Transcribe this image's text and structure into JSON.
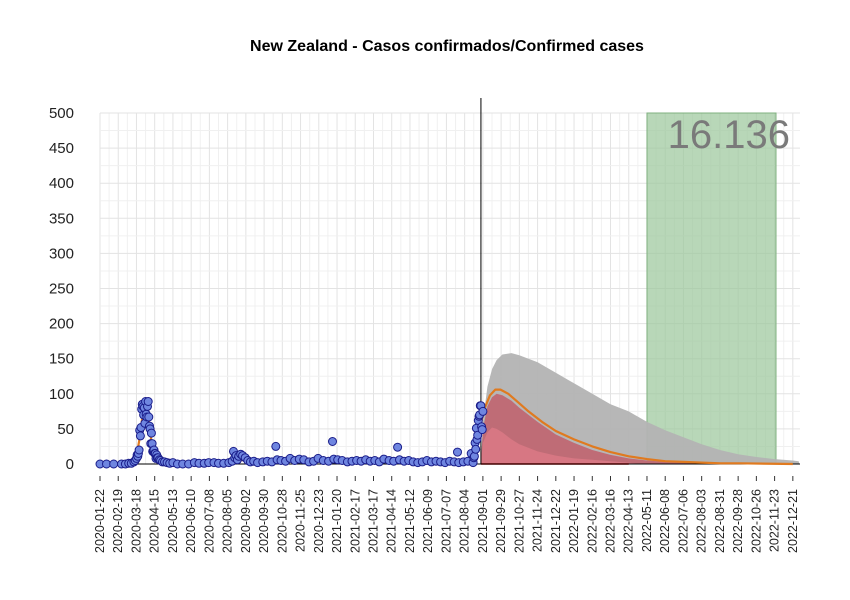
{
  "chart_data": {
    "type": "scatter",
    "title": "New Zealand - Casos confirmados/Confirmed cases",
    "xlabel": "",
    "ylabel": "",
    "ylim": [
      0,
      500
    ],
    "yticks": [
      0,
      50,
      100,
      150,
      200,
      250,
      300,
      350,
      400,
      450,
      500
    ],
    "xlim": [
      "2020-01-22",
      "2023-01-01"
    ],
    "xticks": [
      "2020-01-22",
      "2020-02-19",
      "2020-03-18",
      "2020-04-15",
      "2020-05-13",
      "2020-06-10",
      "2020-07-08",
      "2020-08-05",
      "2020-09-02",
      "2020-09-30",
      "2020-10-28",
      "2020-11-25",
      "2020-12-23",
      "2021-01-20",
      "2021-02-17",
      "2021-03-17",
      "2021-04-14",
      "2021-05-12",
      "2021-06-09",
      "2021-07-07",
      "2021-08-04",
      "2021-09-01",
      "2021-09-29",
      "2021-10-27",
      "2021-11-24",
      "2021-12-22",
      "2022-01-19",
      "2022-02-16",
      "2022-03-16",
      "2022-04-13",
      "2022-05-11",
      "2022-06-08",
      "2022-07-06",
      "2022-08-03",
      "2022-08-31",
      "2022-09-28",
      "2022-10-26",
      "2022-11-23",
      "2022-12-21"
    ],
    "grid": true,
    "vertical_line_date": "2021-08-29",
    "total_label": "16.136",
    "shaded_region": {
      "start": "2022-05-11",
      "end": "2023-01-01",
      "color": "#9dc89d"
    },
    "colors": {
      "points_fill": "#6f86e0",
      "points_stroke": "#1a1d8a",
      "fit_line": "#e07a1f",
      "projection_upper": "#b3b3b3",
      "projection_mid": "#c0646f",
      "projection_lower": "#d87884",
      "zero_line": "#cc0000"
    },
    "observed_points": [
      [
        "2020-01-22",
        0
      ],
      [
        "2020-02-01",
        0
      ],
      [
        "2020-02-12",
        0
      ],
      [
        "2020-02-24",
        0
      ],
      [
        "2020-03-01",
        0
      ],
      [
        "2020-03-06",
        1
      ],
      [
        "2020-03-10",
        1
      ],
      [
        "2020-03-14",
        3
      ],
      [
        "2020-03-16",
        5
      ],
      [
        "2020-03-18",
        8
      ],
      [
        "2020-03-19",
        13
      ],
      [
        "2020-03-20",
        11
      ],
      [
        "2020-03-21",
        15
      ],
      [
        "2020-03-22",
        20
      ],
      [
        "2020-03-23",
        48
      ],
      [
        "2020-03-24",
        40
      ],
      [
        "2020-03-25",
        52
      ],
      [
        "2020-03-26",
        78
      ],
      [
        "2020-03-27",
        85
      ],
      [
        "2020-03-28",
        82
      ],
      [
        "2020-03-29",
        70
      ],
      [
        "2020-03-30",
        80
      ],
      [
        "2020-03-31",
        58
      ],
      [
        "2020-04-01",
        89
      ],
      [
        "2020-04-02",
        71
      ],
      [
        "2020-04-03",
        67
      ],
      [
        "2020-04-04",
        82
      ],
      [
        "2020-04-05",
        89
      ],
      [
        "2020-04-06",
        67
      ],
      [
        "2020-04-07",
        54
      ],
      [
        "2020-04-08",
        50
      ],
      [
        "2020-04-09",
        29
      ],
      [
        "2020-04-10",
        44
      ],
      [
        "2020-04-11",
        29
      ],
      [
        "2020-04-12",
        18
      ],
      [
        "2020-04-13",
        19
      ],
      [
        "2020-04-14",
        20
      ],
      [
        "2020-04-15",
        15
      ],
      [
        "2020-04-16",
        15
      ],
      [
        "2020-04-17",
        8
      ],
      [
        "2020-04-18",
        13
      ],
      [
        "2020-04-19",
        9
      ],
      [
        "2020-04-20",
        9
      ],
      [
        "2020-04-22",
        6
      ],
      [
        "2020-04-24",
        5
      ],
      [
        "2020-04-27",
        3
      ],
      [
        "2020-04-30",
        3
      ],
      [
        "2020-05-04",
        2
      ],
      [
        "2020-05-08",
        1
      ],
      [
        "2020-05-13",
        2
      ],
      [
        "2020-05-20",
        0
      ],
      [
        "2020-05-28",
        0
      ],
      [
        "2020-06-06",
        0
      ],
      [
        "2020-06-15",
        2
      ],
      [
        "2020-06-22",
        1
      ],
      [
        "2020-06-30",
        1
      ],
      [
        "2020-07-07",
        2
      ],
      [
        "2020-07-15",
        2
      ],
      [
        "2020-07-22",
        1
      ],
      [
        "2020-07-30",
        1
      ],
      [
        "2020-08-07",
        2
      ],
      [
        "2020-08-12",
        4
      ],
      [
        "2020-08-14",
        18
      ],
      [
        "2020-08-16",
        9
      ],
      [
        "2020-08-18",
        12
      ],
      [
        "2020-08-20",
        6
      ],
      [
        "2020-08-22",
        11
      ],
      [
        "2020-08-25",
        14
      ],
      [
        "2020-08-28",
        12
      ],
      [
        "2020-09-01",
        9
      ],
      [
        "2020-09-05",
        5
      ],
      [
        "2020-09-09",
        3
      ],
      [
        "2020-09-14",
        4
      ],
      [
        "2020-09-20",
        2
      ],
      [
        "2020-09-28",
        3
      ],
      [
        "2020-10-05",
        4
      ],
      [
        "2020-10-12",
        3
      ],
      [
        "2020-10-18",
        25
      ],
      [
        "2020-10-20",
        6
      ],
      [
        "2020-10-26",
        5
      ],
      [
        "2020-11-02",
        4
      ],
      [
        "2020-11-09",
        8
      ],
      [
        "2020-11-16",
        5
      ],
      [
        "2020-11-23",
        7
      ],
      [
        "2020-11-30",
        6
      ],
      [
        "2020-12-08",
        3
      ],
      [
        "2020-12-15",
        4
      ],
      [
        "2020-12-22",
        8
      ],
      [
        "2020-12-30",
        5
      ],
      [
        "2021-01-07",
        4
      ],
      [
        "2021-01-13",
        32
      ],
      [
        "2021-01-15",
        7
      ],
      [
        "2021-01-21",
        6
      ],
      [
        "2021-01-28",
        5
      ],
      [
        "2021-02-05",
        3
      ],
      [
        "2021-02-12",
        4
      ],
      [
        "2021-02-19",
        5
      ],
      [
        "2021-02-26",
        4
      ],
      [
        "2021-03-05",
        6
      ],
      [
        "2021-03-12",
        4
      ],
      [
        "2021-03-19",
        5
      ],
      [
        "2021-03-26",
        3
      ],
      [
        "2021-04-02",
        7
      ],
      [
        "2021-04-10",
        5
      ],
      [
        "2021-04-17",
        4
      ],
      [
        "2021-04-23",
        24
      ],
      [
        "2021-04-26",
        6
      ],
      [
        "2021-05-03",
        4
      ],
      [
        "2021-05-10",
        5
      ],
      [
        "2021-05-17",
        3
      ],
      [
        "2021-05-24",
        2
      ],
      [
        "2021-05-31",
        3
      ],
      [
        "2021-06-07",
        5
      ],
      [
        "2021-06-14",
        3
      ],
      [
        "2021-06-21",
        4
      ],
      [
        "2021-06-28",
        3
      ],
      [
        "2021-07-05",
        2
      ],
      [
        "2021-07-12",
        4
      ],
      [
        "2021-07-19",
        3
      ],
      [
        "2021-07-24",
        17
      ],
      [
        "2021-07-26",
        2
      ],
      [
        "2021-08-02",
        3
      ],
      [
        "2021-08-09",
        4
      ],
      [
        "2021-08-14",
        15
      ],
      [
        "2021-08-17",
        2
      ],
      [
        "2021-08-18",
        9
      ],
      [
        "2021-08-19",
        11
      ],
      [
        "2021-08-20",
        30
      ],
      [
        "2021-08-21",
        21
      ],
      [
        "2021-08-22",
        51
      ],
      [
        "2021-08-23",
        35
      ],
      [
        "2021-08-24",
        41
      ],
      [
        "2021-08-25",
        62
      ],
      [
        "2021-08-26",
        68
      ],
      [
        "2021-08-27",
        70
      ],
      [
        "2021-08-28",
        83
      ],
      [
        "2021-08-29",
        83
      ],
      [
        "2021-08-30",
        53
      ],
      [
        "2021-08-31",
        49
      ],
      [
        "2021-09-01",
        75
      ]
    ],
    "fit_curve": [
      [
        "2020-01-22",
        0
      ],
      [
        "2020-03-05",
        0
      ],
      [
        "2020-03-12",
        3
      ],
      [
        "2020-03-18",
        12
      ],
      [
        "2020-03-22",
        32
      ],
      [
        "2020-03-26",
        60
      ],
      [
        "2020-03-29",
        78
      ],
      [
        "2020-04-01",
        84
      ],
      [
        "2020-04-04",
        76
      ],
      [
        "2020-04-07",
        55
      ],
      [
        "2020-04-10",
        32
      ],
      [
        "2020-04-14",
        14
      ],
      [
        "2020-04-20",
        5
      ],
      [
        "2020-04-28",
        2
      ],
      [
        "2020-05-10",
        1
      ],
      [
        "2020-08-10",
        2
      ],
      [
        "2020-08-20",
        6
      ],
      [
        "2020-09-05",
        5
      ],
      [
        "2020-10-10",
        4
      ],
      [
        "2020-12-20",
        5
      ],
      [
        "2021-03-01",
        5
      ],
      [
        "2021-06-01",
        4
      ],
      [
        "2021-08-01",
        4
      ],
      [
        "2021-08-12",
        5
      ],
      [
        "2021-08-18",
        12
      ],
      [
        "2021-08-23",
        30
      ],
      [
        "2021-08-28",
        55
      ],
      [
        "2021-09-04",
        80
      ],
      [
        "2021-09-12",
        98
      ],
      [
        "2021-09-20",
        106
      ],
      [
        "2021-09-28",
        106
      ],
      [
        "2021-10-10",
        100
      ],
      [
        "2021-10-25",
        88
      ],
      [
        "2021-11-10",
        75
      ],
      [
        "2021-12-01",
        60
      ],
      [
        "2021-12-22",
        47
      ],
      [
        "2022-01-19",
        35
      ],
      [
        "2022-02-16",
        25
      ],
      [
        "2022-03-16",
        17
      ],
      [
        "2022-04-13",
        11
      ],
      [
        "2022-05-11",
        7
      ],
      [
        "2022-06-08",
        4
      ],
      [
        "2022-07-06",
        3
      ],
      [
        "2022-08-03",
        2
      ],
      [
        "2022-09-01",
        1
      ],
      [
        "2022-10-01",
        1
      ],
      [
        "2022-12-21",
        0
      ]
    ],
    "projection_upper": [
      [
        "2021-08-29",
        0
      ],
      [
        "2021-09-01",
        60
      ],
      [
        "2021-09-08",
        110
      ],
      [
        "2021-09-15",
        135
      ],
      [
        "2021-09-22",
        148
      ],
      [
        "2021-10-01",
        156
      ],
      [
        "2021-10-15",
        158
      ],
      [
        "2021-10-27",
        155
      ],
      [
        "2021-11-24",
        145
      ],
      [
        "2021-12-22",
        130
      ],
      [
        "2022-01-19",
        115
      ],
      [
        "2022-02-16",
        100
      ],
      [
        "2022-03-16",
        85
      ],
      [
        "2022-04-13",
        75
      ],
      [
        "2022-05-11",
        60
      ],
      [
        "2022-06-08",
        48
      ],
      [
        "2022-07-06",
        38
      ],
      [
        "2022-08-03",
        28
      ],
      [
        "2022-08-31",
        20
      ],
      [
        "2022-09-28",
        14
      ],
      [
        "2022-10-26",
        10
      ],
      [
        "2022-11-23",
        7
      ],
      [
        "2022-12-21",
        5
      ],
      [
        "2022-12-30",
        4
      ],
      [
        "2022-12-31",
        0
      ]
    ],
    "projection_mid": [
      [
        "2021-08-29",
        0
      ],
      [
        "2021-09-01",
        50
      ],
      [
        "2021-09-08",
        82
      ],
      [
        "2021-09-15",
        95
      ],
      [
        "2021-09-22",
        100
      ],
      [
        "2021-10-01",
        98
      ],
      [
        "2021-10-15",
        90
      ],
      [
        "2021-10-27",
        80
      ],
      [
        "2021-11-24",
        60
      ],
      [
        "2021-12-22",
        42
      ],
      [
        "2022-01-19",
        30
      ],
      [
        "2022-02-16",
        20
      ],
      [
        "2022-03-16",
        13
      ],
      [
        "2022-04-13",
        8
      ],
      [
        "2022-05-11",
        5
      ],
      [
        "2022-06-08",
        3
      ],
      [
        "2022-07-06",
        2
      ],
      [
        "2022-08-03",
        1
      ],
      [
        "2022-08-31",
        0
      ]
    ],
    "projection_lower": [
      [
        "2021-08-29",
        0
      ],
      [
        "2021-09-01",
        30
      ],
      [
        "2021-09-08",
        45
      ],
      [
        "2021-09-15",
        52
      ],
      [
        "2021-09-22",
        50
      ],
      [
        "2021-10-01",
        45
      ],
      [
        "2021-10-15",
        35
      ],
      [
        "2021-10-27",
        28
      ],
      [
        "2021-11-24",
        18
      ],
      [
        "2021-12-22",
        12
      ],
      [
        "2022-01-19",
        8
      ],
      [
        "2022-02-16",
        6
      ],
      [
        "2022-03-16",
        4
      ],
      [
        "2022-04-13",
        2
      ],
      [
        "2022-05-01",
        0
      ]
    ]
  }
}
